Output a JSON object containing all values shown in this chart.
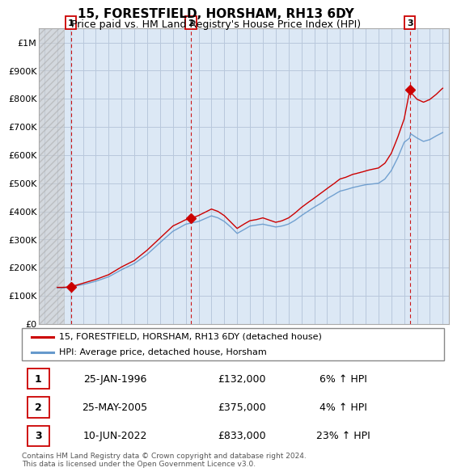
{
  "title": "15, FORESTFIELD, HORSHAM, RH13 6DY",
  "subtitle": "Price paid vs. HM Land Registry's House Price Index (HPI)",
  "hpi_color": "#6699cc",
  "price_color": "#cc0000",
  "plot_bg": "#dce8f5",
  "grid_color": "#b8c8dc",
  "ylim": [
    0,
    1050000
  ],
  "yticks": [
    0,
    100000,
    200000,
    300000,
    400000,
    500000,
    600000,
    700000,
    800000,
    900000,
    1000000
  ],
  "ytick_labels": [
    "£0",
    "£100K",
    "£200K",
    "£300K",
    "£400K",
    "£500K",
    "£600K",
    "£700K",
    "£800K",
    "£900K",
    "£1M"
  ],
  "xlim_start": 1993.58,
  "xlim_end": 2025.5,
  "xticks": [
    1994,
    1995,
    1996,
    1997,
    1998,
    1999,
    2000,
    2001,
    2002,
    2003,
    2004,
    2005,
    2006,
    2007,
    2008,
    2009,
    2010,
    2011,
    2012,
    2013,
    2014,
    2015,
    2016,
    2017,
    2018,
    2019,
    2020,
    2021,
    2022,
    2023,
    2024,
    2025
  ],
  "sales": [
    {
      "year": 1996.07,
      "price": 132000,
      "label": "1"
    },
    {
      "year": 2005.4,
      "price": 375000,
      "label": "2"
    },
    {
      "year": 2022.44,
      "price": 833000,
      "label": "3"
    }
  ],
  "legend_line1": "15, FORESTFIELD, HORSHAM, RH13 6DY (detached house)",
  "legend_line2": "HPI: Average price, detached house, Horsham",
  "table_data": [
    {
      "num": "1",
      "date": "25-JAN-1996",
      "price": "£132,000",
      "change": "6% ↑ HPI"
    },
    {
      "num": "2",
      "date": "25-MAY-2005",
      "price": "£375,000",
      "change": "4% ↑ HPI"
    },
    {
      "num": "3",
      "date": "10-JUN-2022",
      "price": "£833,000",
      "change": "23% ↑ HPI"
    }
  ],
  "footnote": "Contains HM Land Registry data © Crown copyright and database right 2024.\nThis data is licensed under the Open Government Licence v3.0.",
  "hatched_end": 1995.5
}
